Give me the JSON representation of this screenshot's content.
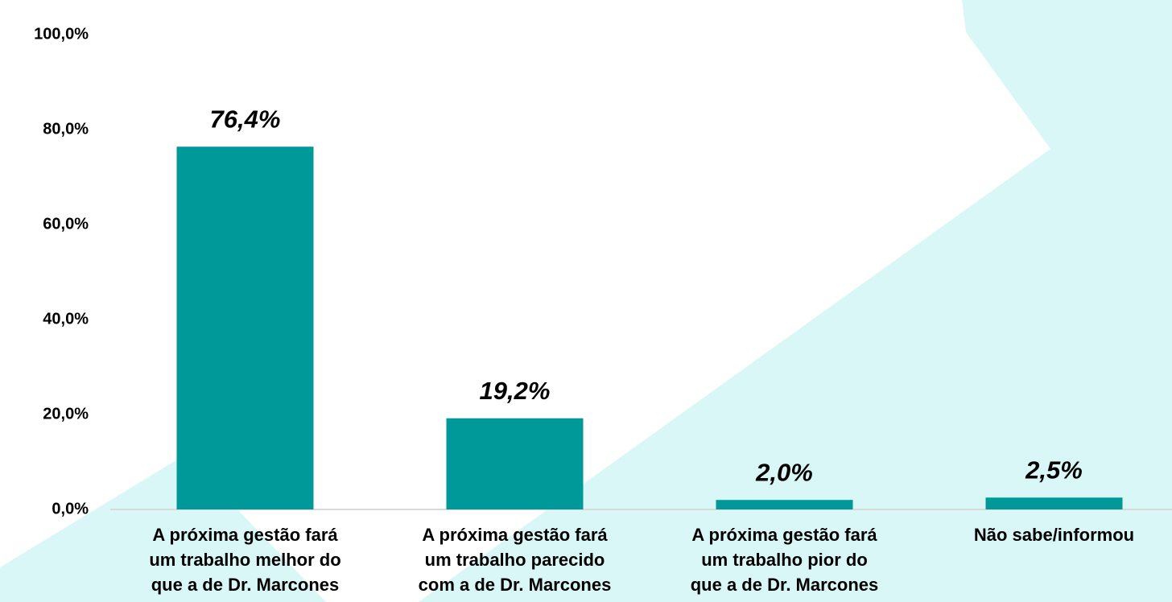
{
  "chart_data": {
    "type": "bar",
    "categories": [
      [
        "A próxima gestão fará",
        "um trabalho melhor do",
        "que a de Dr. Marcones"
      ],
      [
        "A próxima gestão fará",
        "um trabalho parecido",
        "com a de Dr. Marcones"
      ],
      [
        "A próxima gestão fará",
        "um trabalho pior do",
        "que a de Dr. Marcones"
      ],
      [
        "Não sabe/informou"
      ]
    ],
    "values": [
      76.4,
      19.2,
      2.0,
      2.5
    ],
    "value_labels": [
      "76,4%",
      "19,2%",
      "2,0%",
      "2,5%"
    ],
    "color": "#009999",
    "ylim": [
      0,
      100
    ],
    "yticks": [
      {
        "value": 0,
        "label": "0,0%"
      },
      {
        "value": 20,
        "label": "20,0%"
      },
      {
        "value": 40,
        "label": "40,0%"
      },
      {
        "value": 60,
        "label": "60,0%"
      },
      {
        "value": 80,
        "label": "80,0%"
      },
      {
        "value": 100,
        "label": "100,0%"
      }
    ],
    "grid": false
  }
}
